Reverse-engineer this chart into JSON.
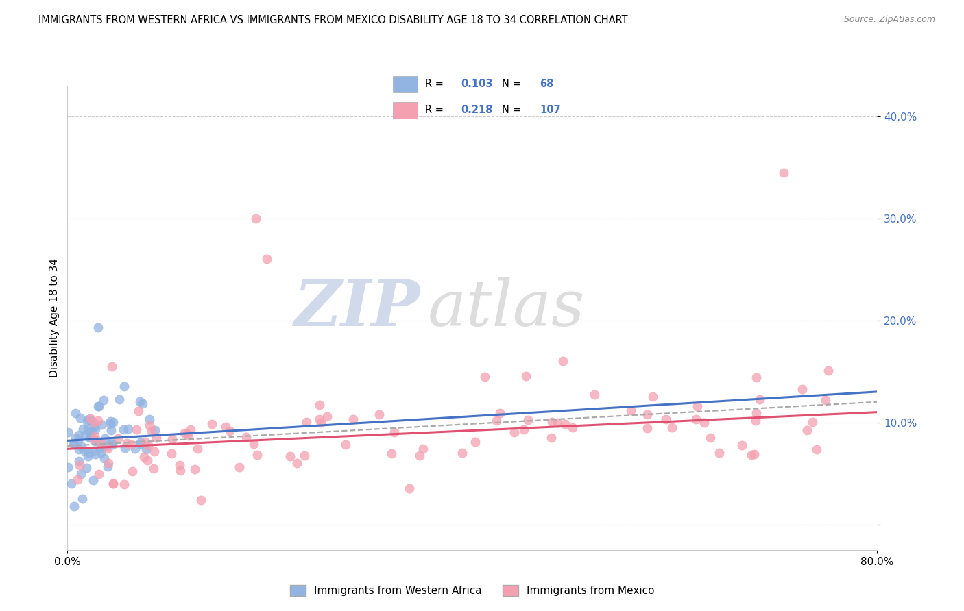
{
  "title": "IMMIGRANTS FROM WESTERN AFRICA VS IMMIGRANTS FROM MEXICO DISABILITY AGE 18 TO 34 CORRELATION CHART",
  "source": "Source: ZipAtlas.com",
  "ylabel": "Disability Age 18 to 34",
  "xlim": [
    0.0,
    0.8
  ],
  "ylim": [
    -0.025,
    0.43
  ],
  "ytick_vals": [
    0.0,
    0.1,
    0.2,
    0.3,
    0.4
  ],
  "ytick_labels": [
    "",
    "10.0%",
    "20.0%",
    "30.0%",
    "40.0%"
  ],
  "xtick_vals": [
    0.0,
    0.8
  ],
  "xtick_labels": [
    "0.0%",
    "80.0%"
  ],
  "grid_color": "#cccccc",
  "background_color": "#ffffff",
  "watermark_zip": "ZIP",
  "watermark_atlas": "atlas",
  "series1_color": "#92b4e3",
  "series2_color": "#f4a0b0",
  "series1_edge": "#7099cc",
  "series2_edge": "#e07090",
  "series1_label": "Immigrants from Western Africa",
  "series2_label": "Immigrants from Mexico",
  "trend1_color": "#4472c4",
  "trend2_color": "#e05070",
  "trend_gray_color": "#aaaaaa",
  "series1_R": 0.103,
  "series1_N": 68,
  "series2_R": 0.218,
  "series2_N": 107,
  "trend1_y0": 0.082,
  "trend1_y1": 0.13,
  "trend2_y0": 0.074,
  "trend2_y1": 0.11,
  "trend_gray_y0": 0.077,
  "trend_gray_y1": 0.12
}
